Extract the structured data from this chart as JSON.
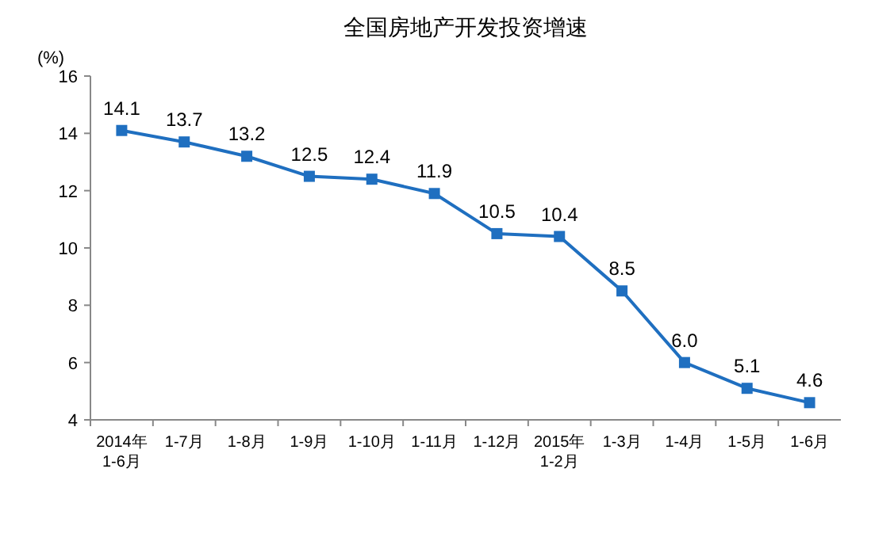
{
  "chart_data": {
    "type": "line",
    "title": "全国房地产开发投资增速",
    "ylabel": "(%)",
    "categories": [
      "2014年\n1-6月",
      "1-7月",
      "1-8月",
      "1-9月",
      "1-10月",
      "1-11月",
      "1-12月",
      "2015年\n1-2月",
      "1-3月",
      "1-4月",
      "1-5月",
      "1-6月"
    ],
    "values": [
      14.1,
      13.7,
      13.2,
      12.5,
      12.4,
      11.9,
      10.5,
      10.4,
      8.5,
      6.0,
      5.1,
      4.6
    ],
    "color": "#1f6fc0",
    "ylim": [
      4,
      16
    ],
    "yticks": [
      4,
      6,
      8,
      10,
      12,
      14,
      16
    ],
    "value_labels": [
      "14.1",
      "13.7",
      "13.2",
      "12.5",
      "12.4",
      "11.9",
      "10.5",
      "10.4",
      "8.5",
      "6.0",
      "5.1",
      "4.6"
    ],
    "marker": "square",
    "line_style": "solid"
  }
}
